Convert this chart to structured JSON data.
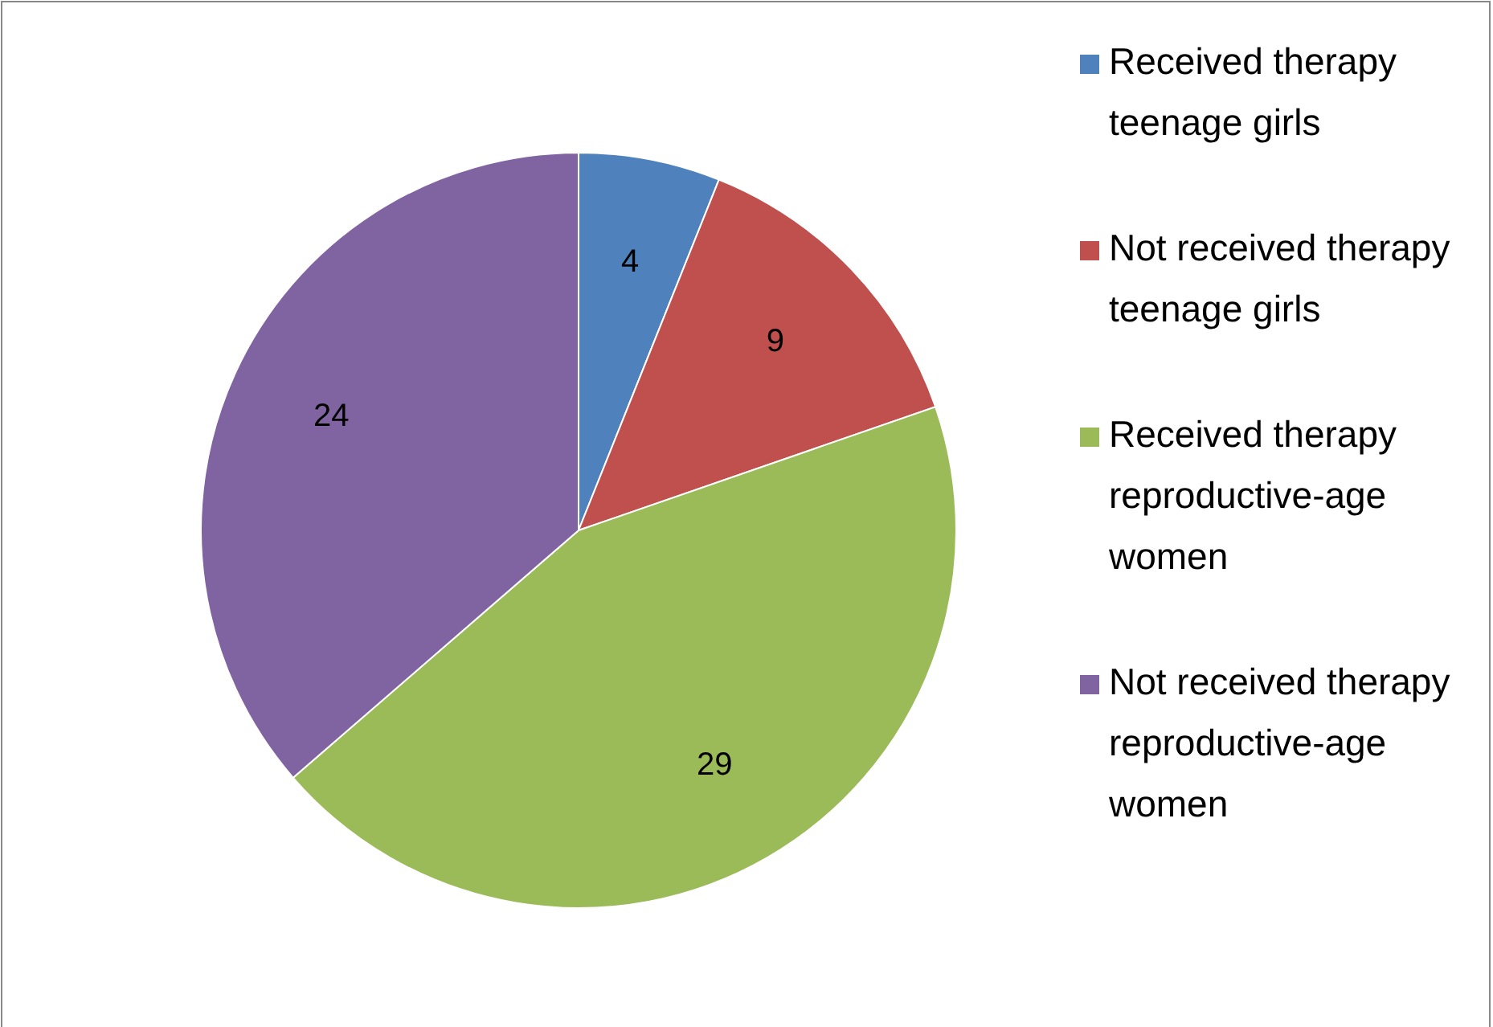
{
  "chart_data": {
    "type": "pie",
    "categories": [
      "Received therapy teenage girls",
      "Not received therapy teenage girls",
      "Received therapy reproductive-age women",
      "Not received therapy reproductive-age women"
    ],
    "values": [
      4,
      9,
      29,
      24
    ],
    "colors": [
      "#4f81bd",
      "#c0504d",
      "#9bbb59",
      "#8064a2"
    ],
    "data_labels": true,
    "legend": "right"
  }
}
